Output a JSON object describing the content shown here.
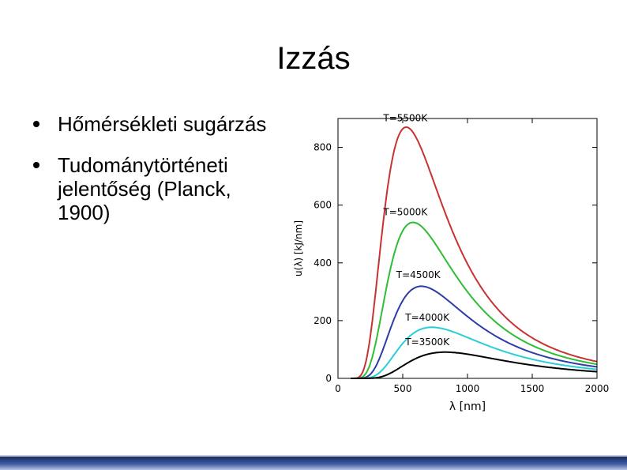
{
  "slide": {
    "title": "Izzás",
    "bullets": [
      "Hőmérsékleti sugárzás",
      "Tudománytörténeti jelentőség (Planck, 1900)"
    ]
  },
  "chart_data": {
    "type": "line",
    "xlabel": "λ [nm]",
    "ylabel": "u(λ) [kJ/nm]",
    "xlim": [
      0,
      2000
    ],
    "ylim": [
      0,
      900
    ],
    "xticks": [
      0,
      500,
      1000,
      1500,
      2000
    ],
    "yticks": [
      0,
      200,
      400,
      600,
      800
    ],
    "grid": false,
    "legend": "none",
    "series": [
      {
        "name": "T=5500K",
        "T": 5500,
        "color": "#c83232",
        "label_pos": [
          350,
          890
        ]
      },
      {
        "name": "T=5000K",
        "T": 5000,
        "color": "#2fbd35",
        "label_pos": [
          350,
          565
        ]
      },
      {
        "name": "T=4500K",
        "T": 4500,
        "color": "#2f3ca8",
        "label_pos": [
          450,
          348
        ]
      },
      {
        "name": "T=4000K",
        "T": 4000,
        "color": "#28cfd8",
        "label_pos": [
          520,
          200
        ]
      },
      {
        "name": "T=3500K",
        "T": 3500,
        "color": "#000000",
        "label_pos": [
          520,
          115
        ]
      }
    ]
  }
}
